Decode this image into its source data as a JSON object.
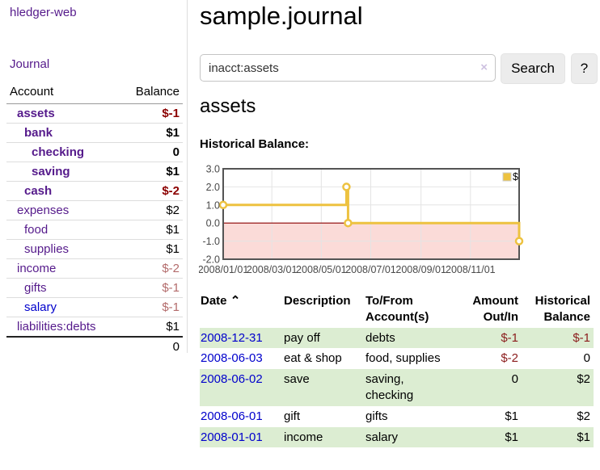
{
  "app": {
    "brand": "hledger-web"
  },
  "sidebar": {
    "journal_link": "Journal",
    "accounts_table": {
      "col_account": "Account",
      "col_balance": "Balance",
      "rows": [
        {
          "account": "assets",
          "balance": "$-1",
          "level": 1,
          "bold": true,
          "link_color": "purple",
          "balance_tone": "strong"
        },
        {
          "account": "bank",
          "balance": "$1",
          "level": 2,
          "bold": true,
          "link_color": "purple",
          "balance_tone": null
        },
        {
          "account": "checking",
          "balance": "0",
          "level": 3,
          "bold": true,
          "link_color": "purple",
          "balance_tone": null
        },
        {
          "account": "saving",
          "balance": "$1",
          "level": 3,
          "bold": true,
          "link_color": "purple",
          "balance_tone": null
        },
        {
          "account": "cash",
          "balance": "$-2",
          "level": 2,
          "bold": true,
          "link_color": "purple",
          "balance_tone": "strong"
        },
        {
          "account": "expenses",
          "balance": "$2",
          "level": 1,
          "bold": false,
          "link_color": "purple",
          "balance_tone": null
        },
        {
          "account": "food",
          "balance": "$1",
          "level": 2,
          "bold": false,
          "link_color": "purple",
          "balance_tone": null
        },
        {
          "account": "supplies",
          "balance": "$1",
          "level": 2,
          "bold": false,
          "link_color": "purple",
          "balance_tone": null
        },
        {
          "account": "income",
          "balance": "$-2",
          "level": 1,
          "bold": false,
          "link_color": "purple",
          "balance_tone": "muted"
        },
        {
          "account": "gifts",
          "balance": "$-1",
          "level": 2,
          "bold": false,
          "link_color": "purple",
          "balance_tone": "muted"
        },
        {
          "account": "salary",
          "balance": "$-1",
          "level": 2,
          "bold": false,
          "link_color": "blue",
          "balance_tone": "muted"
        },
        {
          "account": "liabilities:debts",
          "balance": "$1",
          "level": 1,
          "bold": false,
          "link_color": "purple",
          "balance_tone": null
        }
      ],
      "total": "0"
    }
  },
  "main": {
    "title": "sample.journal",
    "search": {
      "value": "inacct:assets",
      "clear_icon": "×",
      "search_button": "Search",
      "help_button": "?"
    },
    "account_heading": "assets",
    "chart_title": "Historical Balance:"
  },
  "chart_data": {
    "type": "line",
    "interpolation": "step-after",
    "title": "Historical Balance",
    "series": [
      {
        "name": "$",
        "color": "#edc240",
        "points": [
          {
            "date": "2008-01-01",
            "day": 0,
            "value": 1
          },
          {
            "date": "2008-06-01",
            "day": 152,
            "value": 2
          },
          {
            "date": "2008-06-03",
            "day": 154,
            "value": 0
          },
          {
            "date": "2008-12-31",
            "day": 365,
            "value": -1
          }
        ]
      }
    ],
    "x_ticks": [
      {
        "label": "2008/01/01",
        "day": 0
      },
      {
        "label": "2008/03/01",
        "day": 60
      },
      {
        "label": "2008/05/01",
        "day": 121
      },
      {
        "label": "2008/07/01",
        "day": 182
      },
      {
        "label": "2008/09/01",
        "day": 244
      },
      {
        "label": "2008/11/01",
        "day": 305
      }
    ],
    "y_ticks": [
      "3.0",
      "2.0",
      "1.0",
      "0.0",
      "-1.0",
      "-2.0"
    ],
    "ylim": [
      -2,
      3
    ],
    "xlim_days": [
      0,
      365
    ],
    "grid": true,
    "legend_position": "top-right",
    "negative_region_color": "#fbdbd8",
    "zero_line_color": "#8b0000",
    "plot_border_color": "#545454",
    "grid_color": "#e4e4e4",
    "axis_label_color": "#4a4a4a"
  },
  "register": {
    "headers": {
      "date": "Date",
      "sort_icon": "⌃",
      "description": "Description",
      "tofrom": "To/From Account(s)",
      "amount": "Amount Out/In",
      "balance": "Historical Balance"
    },
    "rows": [
      {
        "date": "2008-12-31",
        "description": "pay off",
        "tofrom": "debts",
        "amount": "$-1",
        "balance": "$-1",
        "amount_negative": true,
        "balance_negative": true
      },
      {
        "date": "2008-06-03",
        "description": "eat & shop",
        "tofrom": "food, supplies",
        "amount": "$-2",
        "balance": "0",
        "amount_negative": true,
        "balance_negative": false
      },
      {
        "date": "2008-06-02",
        "description": "save",
        "tofrom": "saving, checking",
        "amount": "0",
        "balance": "$2",
        "amount_negative": false,
        "balance_negative": false
      },
      {
        "date": "2008-06-01",
        "description": "gift",
        "tofrom": "gifts",
        "amount": "$1",
        "balance": "$2",
        "amount_negative": false,
        "balance_negative": false
      },
      {
        "date": "2008-01-01",
        "description": "income",
        "tofrom": "salary",
        "amount": "$1",
        "balance": "$1",
        "amount_negative": false,
        "balance_negative": false
      }
    ]
  },
  "colors": {
    "link_purple": "#551a8b",
    "link_blue": "#0000cc",
    "negative_strong": "#8b0000",
    "negative_muted": "#b36b6b",
    "negative_table": "#8b1c1c",
    "row_stripe_green": "#dcedd2",
    "button_bg": "#ececec",
    "series_gold": "#edc240"
  }
}
